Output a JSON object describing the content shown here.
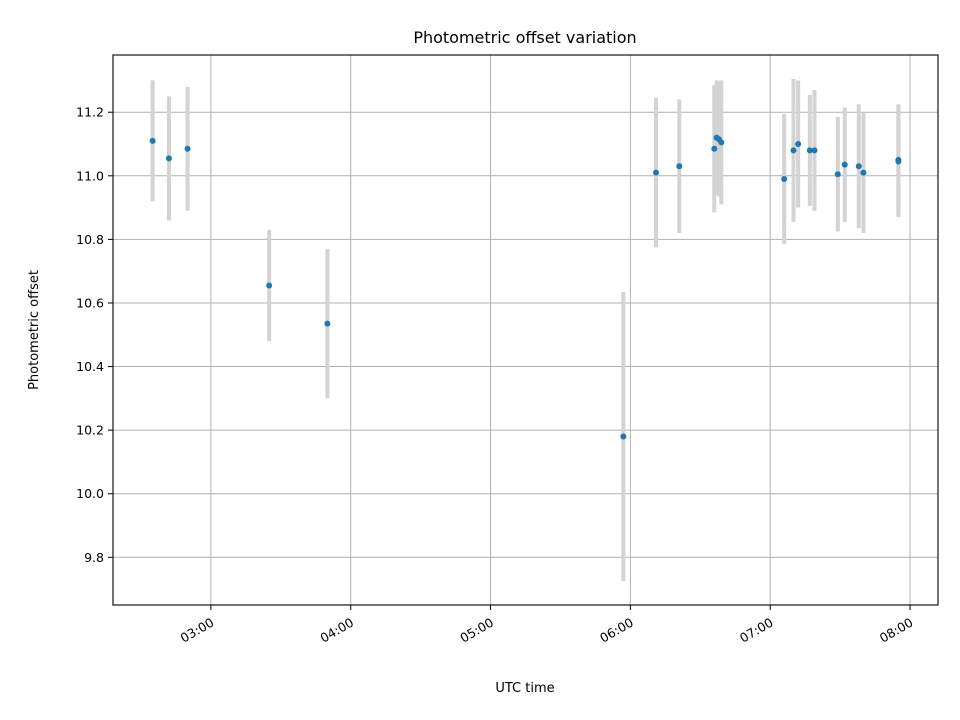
{
  "chart_data": {
    "type": "scatter",
    "title": "Photometric offset variation",
    "xlabel": "UTC time",
    "ylabel": "Photometric offset",
    "x_axis_type": "time",
    "xlim": [
      "02:18",
      "08:12"
    ],
    "ylim": [
      9.65,
      11.38
    ],
    "xticks": [
      "03:00",
      "04:00",
      "05:00",
      "06:00",
      "07:00",
      "08:00"
    ],
    "yticks": [
      9.8,
      10.0,
      10.2,
      10.4,
      10.6,
      10.8,
      11.0,
      11.2
    ],
    "grid": true,
    "colors": {
      "point": "#1f77b4",
      "errorbar": "#d3d3d3"
    },
    "series": [
      {
        "points": [
          {
            "x": "02:35",
            "y": 11.11,
            "err": 0.19
          },
          {
            "x": "02:42",
            "y": 11.055,
            "err": 0.195
          },
          {
            "x": "02:50",
            "y": 11.085,
            "err": 0.195
          },
          {
            "x": "03:25",
            "y": 10.655,
            "err": 0.175
          },
          {
            "x": "03:50",
            "y": 10.535,
            "err": 0.235
          },
          {
            "x": "05:57",
            "y": 10.18,
            "err": 0.455
          },
          {
            "x": "06:11",
            "y": 11.01,
            "err": 0.235
          },
          {
            "x": "06:21",
            "y": 11.03,
            "err": 0.21
          },
          {
            "x": "06:36",
            "y": 11.085,
            "err": 0.2
          },
          {
            "x": "06:37",
            "y": 11.12,
            "err": 0.18
          },
          {
            "x": "06:38",
            "y": 11.115,
            "err": 0.18
          },
          {
            "x": "06:39",
            "y": 11.105,
            "err": 0.195
          },
          {
            "x": "07:06",
            "y": 10.99,
            "err": 0.205
          },
          {
            "x": "07:10",
            "y": 11.08,
            "err": 0.225
          },
          {
            "x": "07:12",
            "y": 11.1,
            "err": 0.2
          },
          {
            "x": "07:17",
            "y": 11.08,
            "err": 0.175
          },
          {
            "x": "07:19",
            "y": 11.08,
            "err": 0.19
          },
          {
            "x": "07:29",
            "y": 11.005,
            "err": 0.18
          },
          {
            "x": "07:32",
            "y": 11.035,
            "err": 0.18
          },
          {
            "x": "07:38",
            "y": 11.03,
            "err": 0.195
          },
          {
            "x": "07:40",
            "y": 11.01,
            "err": 0.19
          },
          {
            "x": "07:55",
            "y": 11.05,
            "err": 0.175
          },
          {
            "x": "07:55",
            "y": 11.045,
            "err": 0.175
          }
        ]
      }
    ]
  }
}
